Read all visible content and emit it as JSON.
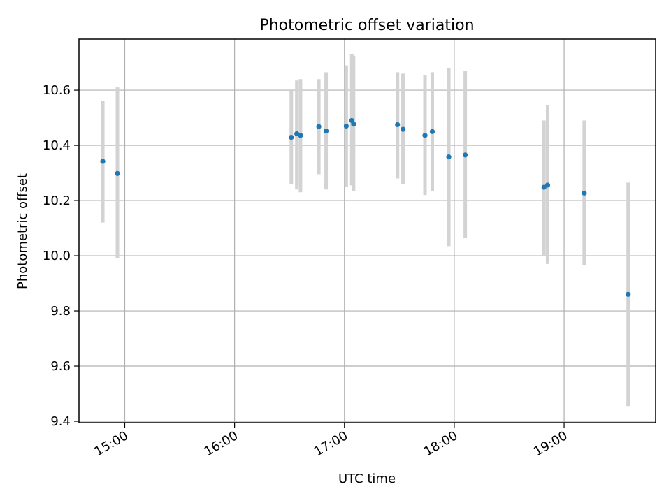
{
  "chart_data": {
    "type": "scatter",
    "title": "Photometric offset variation",
    "xlabel": "UTC time",
    "ylabel": "Photometric offset",
    "x_ticks": [
      "15:00",
      "16:00",
      "17:00",
      "18:00",
      "19:00"
    ],
    "y_ticks": [
      "9.4",
      "9.6",
      "9.8",
      "10.0",
      "10.2",
      "10.4",
      "10.6"
    ],
    "xlim": [
      "14:35",
      "19:50"
    ],
    "ylim": [
      9.395,
      10.785
    ],
    "grid": true,
    "marker_color": "#1f77b4",
    "errorbar_color": "#d3d3d3",
    "points": [
      {
        "x": "14:48",
        "y": 10.342,
        "y_low": 10.12,
        "y_high": 10.56
      },
      {
        "x": "14:56",
        "y": 10.298,
        "y_low": 9.99,
        "y_high": 10.61
      },
      {
        "x": "16:31",
        "y": 10.429,
        "y_low": 10.26,
        "y_high": 10.6
      },
      {
        "x": "16:34",
        "y": 10.442,
        "y_low": 10.24,
        "y_high": 10.635
      },
      {
        "x": "16:36",
        "y": 10.436,
        "y_low": 10.23,
        "y_high": 10.64
      },
      {
        "x": "16:46",
        "y": 10.468,
        "y_low": 10.295,
        "y_high": 10.64
      },
      {
        "x": "16:50",
        "y": 10.452,
        "y_low": 10.24,
        "y_high": 10.665
      },
      {
        "x": "17:01",
        "y": 10.47,
        "y_low": 10.25,
        "y_high": 10.69
      },
      {
        "x": "17:04",
        "y": 10.49,
        "y_low": 10.255,
        "y_high": 10.73
      },
      {
        "x": "17:05",
        "y": 10.477,
        "y_low": 10.235,
        "y_high": 10.725
      },
      {
        "x": "17:29",
        "y": 10.475,
        "y_low": 10.28,
        "y_high": 10.665
      },
      {
        "x": "17:32",
        "y": 10.458,
        "y_low": 10.26,
        "y_high": 10.66
      },
      {
        "x": "17:44",
        "y": 10.436,
        "y_low": 10.22,
        "y_high": 10.655
      },
      {
        "x": "17:48",
        "y": 10.45,
        "y_low": 10.235,
        "y_high": 10.665
      },
      {
        "x": "17:57",
        "y": 10.358,
        "y_low": 10.035,
        "y_high": 10.68
      },
      {
        "x": "18:06",
        "y": 10.365,
        "y_low": 10.065,
        "y_high": 10.67
      },
      {
        "x": "18:49",
        "y": 10.248,
        "y_low": 10.0,
        "y_high": 10.49
      },
      {
        "x": "18:51",
        "y": 10.256,
        "y_low": 9.97,
        "y_high": 10.545
      },
      {
        "x": "19:11",
        "y": 10.227,
        "y_low": 9.965,
        "y_high": 10.49
      },
      {
        "x": "19:35",
        "y": 9.86,
        "y_low": 9.455,
        "y_high": 10.265
      }
    ]
  }
}
